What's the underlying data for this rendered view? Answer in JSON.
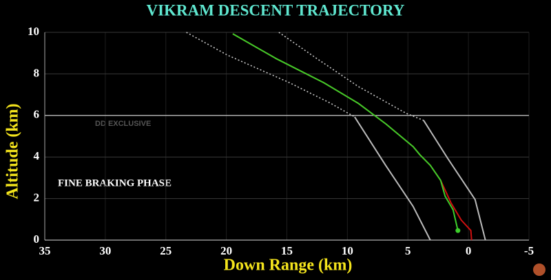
{
  "chart_data": {
    "type": "line",
    "title": "VIKRAM DESCENT TRAJECTORY",
    "x_label": "Down Range (km)",
    "y_label": "Altitude (km)",
    "annotations": [
      "FINE BRAKING PHASE",
      "DD EXCLUSIVE"
    ],
    "xlim": [
      35,
      -5
    ],
    "ylim": [
      0,
      10
    ],
    "xticks": [
      35,
      30,
      25,
      20,
      15,
      10,
      5,
      0,
      -5
    ],
    "yticks": [
      0,
      2,
      4,
      6,
      8,
      10
    ],
    "reference_line": 6,
    "grid": true,
    "series": [
      {
        "color": "#cccccc",
        "dashed": true,
        "x": [
          23.3,
          19.9,
          14.8,
          11.4,
          9.4
        ],
        "values": [
          10,
          8.9,
          7.58,
          6.59,
          5.93
        ]
      },
      {
        "color": "#bbbbbb",
        "dashed": false,
        "x": [
          9.4,
          6.84,
          4.57,
          3.15
        ],
        "values": [
          5.93,
          3.6,
          1.62,
          0
        ]
      },
      {
        "color": "#cccccc",
        "dashed": true,
        "x": [
          15.66,
          12.53,
          9.12,
          5.14,
          3.7
        ],
        "values": [
          10,
          8.74,
          7.4,
          6.1,
          5.76
        ]
      },
      {
        "color": "#bbbbbb",
        "dashed": false,
        "x": [
          3.7,
          1.72,
          -0.55,
          -1.4
        ],
        "values": [
          5.76,
          3.94,
          1.95,
          0
        ]
      },
      {
        "color": "#d01010",
        "dashed": false,
        "x": [
          19.47,
          15.9,
          11.96,
          9.12,
          6.84,
          4.57,
          4.0,
          3.15,
          2.3,
          1.44,
          0.59,
          -0.2,
          -0.26
        ],
        "values": [
          9.93,
          8.74,
          7.58,
          6.59,
          5.6,
          4.5,
          4.1,
          3.6,
          2.88,
          1.79,
          0.96,
          0.46,
          0
        ]
      },
      {
        "color": "#3ccf2a",
        "dashed": false,
        "end_dot": true,
        "x": [
          19.47,
          15.9,
          11.96,
          9.12,
          6.84,
          4.57,
          4.0,
          3.15,
          2.3,
          1.93,
          1.27,
          0.87
        ],
        "values": [
          9.93,
          8.74,
          7.58,
          6.59,
          5.6,
          4.5,
          4.1,
          3.6,
          2.88,
          2.12,
          1.46,
          0.46
        ]
      }
    ]
  }
}
